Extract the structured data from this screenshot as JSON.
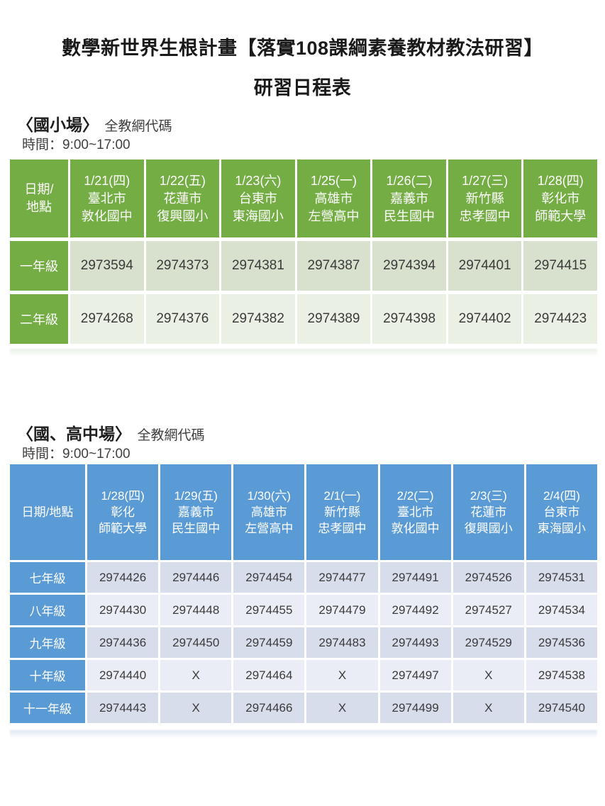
{
  "page": {
    "title_line1": "數學新世界生根計畫【落實108課綱素養教材教法研習】",
    "title_line2": "研習日程表"
  },
  "sections": [
    {
      "id": "elementary",
      "heading": "〈國小場〉",
      "heading_note": "全教網代碼",
      "time_label": "時間：9:00~17:00",
      "theme": {
        "header_bg": "#75AD45",
        "header_text": "#FFFFFF",
        "label_bg": "#75AD45",
        "row_odd_bg": "#D8E1CD",
        "row_even_bg": "#EBF0E4",
        "cell_text": "#3B3B3B"
      },
      "table": {
        "corner_lines": [
          "日期/",
          "地點"
        ],
        "columns": [
          {
            "lines": [
              "1/21(四)",
              "臺北市",
              "敦化國中"
            ]
          },
          {
            "lines": [
              "1/22(五)",
              "花蓮市",
              "復興國小"
            ]
          },
          {
            "lines": [
              "1/23(六)",
              "台東市",
              "東海國小"
            ]
          },
          {
            "lines": [
              "1/25(一)",
              "高雄市",
              "左營高中"
            ]
          },
          {
            "lines": [
              "1/26(二)",
              "嘉義市",
              "民生國中"
            ]
          },
          {
            "lines": [
              "1/27(三)",
              "新竹縣",
              "忠孝國中"
            ]
          },
          {
            "lines": [
              "1/28(四)",
              "彰化市",
              "師範大學"
            ]
          }
        ],
        "rows": [
          {
            "label": "一年級",
            "values": [
              "2973594",
              "2974373",
              "2974381",
              "2974387",
              "2974394",
              "2974401",
              "2974415"
            ]
          },
          {
            "label": "二年級",
            "values": [
              "2974268",
              "2974376",
              "2974382",
              "2974389",
              "2974398",
              "2974402",
              "2974423"
            ]
          }
        ]
      }
    },
    {
      "id": "secondary",
      "heading": "〈國、高中場〉",
      "heading_note": "全教網代碼",
      "time_label": "時間：9:00~17:00",
      "theme": {
        "header_bg": "#5B9BD5",
        "header_text": "#FFFFFF",
        "label_bg": "#5B9BD5",
        "row_odd_bg": "#D7DDEB",
        "row_even_bg": "#EAEDF5",
        "cell_text": "#3B3B3B"
      },
      "table": {
        "corner_lines": [
          "日期/地點"
        ],
        "columns": [
          {
            "lines": [
              "1/28(四)",
              "彰化",
              "師範大學"
            ]
          },
          {
            "lines": [
              "1/29(五)",
              "嘉義市",
              "民生國中"
            ]
          },
          {
            "lines": [
              "1/30(六)",
              "高雄市",
              "左營高中"
            ]
          },
          {
            "lines": [
              "2/1(一)",
              "新竹縣",
              "忠孝國中"
            ]
          },
          {
            "lines": [
              "2/2(二)",
              "臺北市",
              "敦化國中"
            ]
          },
          {
            "lines": [
              "2/3(三)",
              "花蓮市",
              "復興國小"
            ]
          },
          {
            "lines": [
              "2/4(四)",
              "台東市",
              "東海國小"
            ]
          }
        ],
        "rows": [
          {
            "label": "七年級",
            "values": [
              "2974426",
              "2974446",
              "2974454",
              "2974477",
              "2974491",
              "2974526",
              "2974531"
            ]
          },
          {
            "label": "八年級",
            "values": [
              "2974430",
              "2974448",
              "2974455",
              "2974479",
              "2974492",
              "2974527",
              "2974534"
            ]
          },
          {
            "label": "九年級",
            "values": [
              "2974436",
              "2974450",
              "2974459",
              "2974483",
              "2974493",
              "2974529",
              "2974536"
            ]
          },
          {
            "label": "十年級",
            "values": [
              "2974440",
              "X",
              "2974464",
              "X",
              "2974497",
              "X",
              "2974538"
            ]
          },
          {
            "label": "十一年級",
            "values": [
              "2974443",
              "X",
              "2974466",
              "X",
              "2974499",
              "X",
              "2974540"
            ]
          }
        ]
      }
    }
  ]
}
